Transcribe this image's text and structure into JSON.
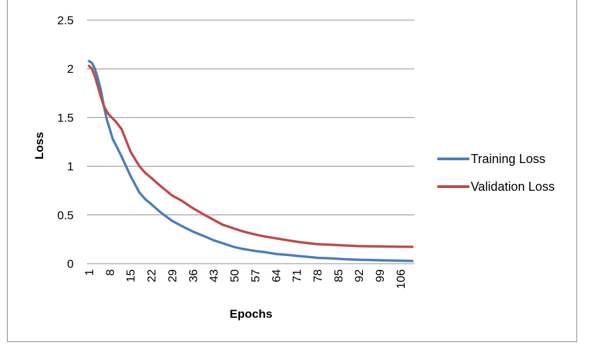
{
  "chart_data": {
    "type": "line",
    "title": "",
    "xlabel": "Epochs",
    "ylabel": "Loss",
    "ylim": [
      0,
      2.5
    ],
    "y_ticks": [
      "0",
      "0.5",
      "1",
      "1.5",
      "2",
      "2.5"
    ],
    "x_tick_labels": [
      "1",
      "8",
      "15",
      "22",
      "29",
      "36",
      "43",
      "50",
      "57",
      "64",
      "71",
      "78",
      "85",
      "92",
      "99",
      "106"
    ],
    "x_range": [
      1,
      110
    ],
    "grid": "horizontal",
    "legend_position": "right",
    "series": [
      {
        "name": "Training Loss",
        "color": "#4a7ebb",
        "points": [
          [
            1,
            2.08
          ],
          [
            2,
            2.06
          ],
          [
            3,
            2.0
          ],
          [
            4,
            1.9
          ],
          [
            5,
            1.78
          ],
          [
            6,
            1.62
          ],
          [
            7,
            1.48
          ],
          [
            8,
            1.38
          ],
          [
            9,
            1.28
          ],
          [
            10,
            1.22
          ],
          [
            12,
            1.1
          ],
          [
            15,
            0.9
          ],
          [
            18,
            0.73
          ],
          [
            20,
            0.66
          ],
          [
            22,
            0.61
          ],
          [
            25,
            0.53
          ],
          [
            29,
            0.44
          ],
          [
            32,
            0.39
          ],
          [
            36,
            0.33
          ],
          [
            40,
            0.28
          ],
          [
            43,
            0.24
          ],
          [
            46,
            0.21
          ],
          [
            50,
            0.17
          ],
          [
            53,
            0.15
          ],
          [
            57,
            0.13
          ],
          [
            60,
            0.12
          ],
          [
            64,
            0.1
          ],
          [
            68,
            0.09
          ],
          [
            71,
            0.08
          ],
          [
            75,
            0.07
          ],
          [
            78,
            0.06
          ],
          [
            82,
            0.055
          ],
          [
            85,
            0.05
          ],
          [
            88,
            0.045
          ],
          [
            92,
            0.04
          ],
          [
            96,
            0.038
          ],
          [
            99,
            0.035
          ],
          [
            103,
            0.032
          ],
          [
            106,
            0.03
          ],
          [
            110,
            0.028
          ]
        ]
      },
      {
        "name": "Validation Loss",
        "color": "#be4b48",
        "points": [
          [
            1,
            2.03
          ],
          [
            2,
            2.0
          ],
          [
            3,
            1.92
          ],
          [
            4,
            1.82
          ],
          [
            5,
            1.71
          ],
          [
            6,
            1.62
          ],
          [
            7,
            1.56
          ],
          [
            8,
            1.52
          ],
          [
            9,
            1.49
          ],
          [
            10,
            1.46
          ],
          [
            12,
            1.38
          ],
          [
            15,
            1.15
          ],
          [
            18,
            1.0
          ],
          [
            20,
            0.93
          ],
          [
            22,
            0.88
          ],
          [
            25,
            0.8
          ],
          [
            29,
            0.7
          ],
          [
            32,
            0.65
          ],
          [
            36,
            0.57
          ],
          [
            40,
            0.5
          ],
          [
            43,
            0.45
          ],
          [
            46,
            0.4
          ],
          [
            50,
            0.36
          ],
          [
            53,
            0.33
          ],
          [
            57,
            0.3
          ],
          [
            60,
            0.28
          ],
          [
            64,
            0.26
          ],
          [
            68,
            0.24
          ],
          [
            71,
            0.225
          ],
          [
            75,
            0.21
          ],
          [
            78,
            0.2
          ],
          [
            82,
            0.195
          ],
          [
            85,
            0.19
          ],
          [
            88,
            0.185
          ],
          [
            92,
            0.18
          ],
          [
            96,
            0.178
          ],
          [
            99,
            0.177
          ],
          [
            103,
            0.175
          ],
          [
            106,
            0.174
          ],
          [
            110,
            0.173
          ]
        ]
      }
    ]
  }
}
